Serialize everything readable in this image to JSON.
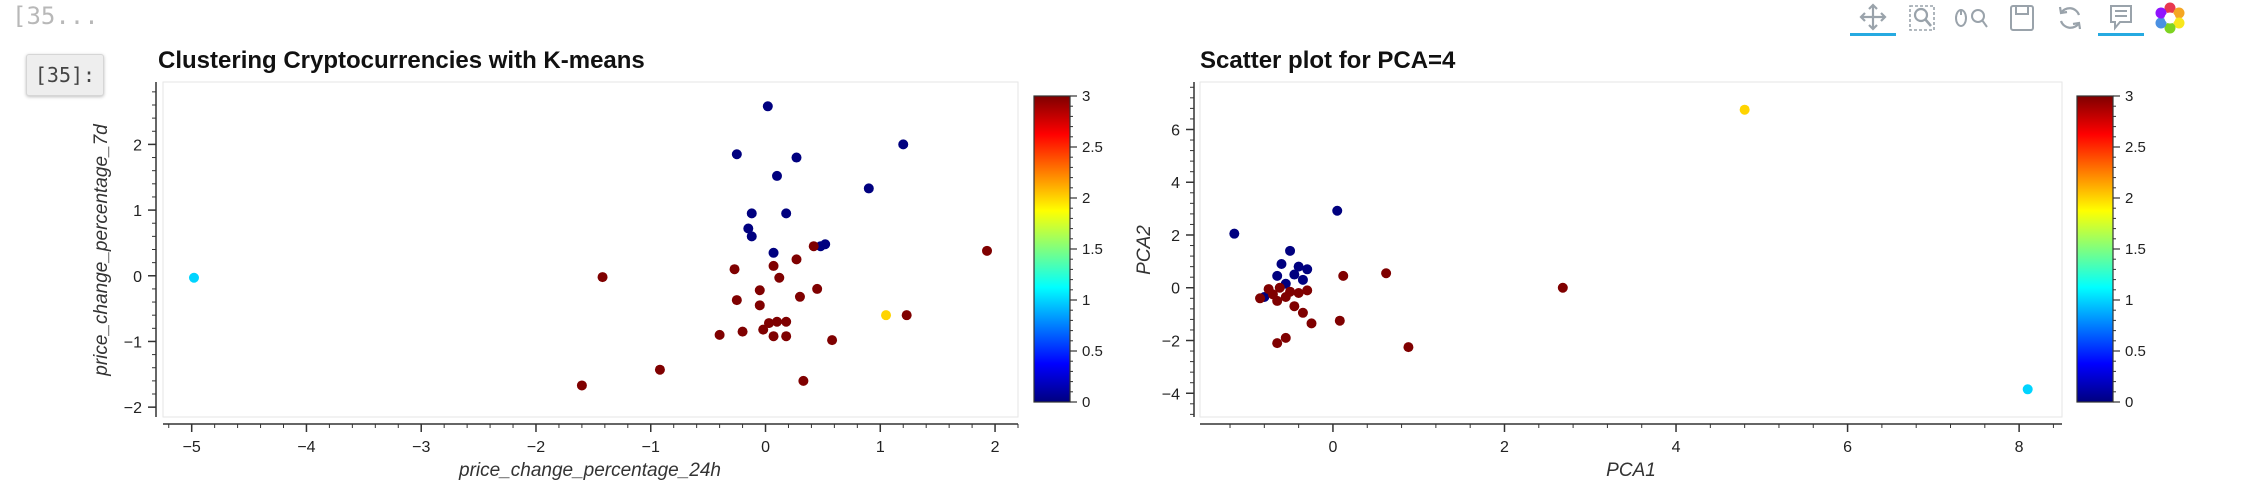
{
  "notebook": {
    "prev_cell_label": "[35...",
    "prompt_label": "[35]:"
  },
  "toolbar": {
    "items": [
      {
        "icon": "pan-icon",
        "active": true
      },
      {
        "icon": "box-zoom-icon",
        "active": false
      },
      {
        "icon": "wheel-zoom-icon",
        "active": false
      },
      {
        "icon": "save-icon",
        "active": false
      },
      {
        "icon": "reset-icon",
        "active": false
      },
      {
        "icon": "hover-icon",
        "active": true
      },
      {
        "icon": "bokeh-logo-icon",
        "active": false
      }
    ]
  },
  "colormap": [
    "#00007f",
    "#0000ff",
    "#007fff",
    "#00ffff",
    "#7fff7f",
    "#ffff00",
    "#ff7f00",
    "#ff0000",
    "#7f0000"
  ],
  "chart_data": [
    {
      "type": "scatter",
      "title": "Clustering Cryptocurrencies with K-means",
      "xlabel": "price_change_percentage_24h",
      "ylabel": "price_change_percentage_7d",
      "xlim": [
        -5.25,
        2.2
      ],
      "ylim": [
        -2.15,
        2.95
      ],
      "xticks": [
        -5,
        -4,
        -3,
        -2,
        -1,
        0,
        1,
        2
      ],
      "yticks": [
        -2,
        -1,
        0,
        1,
        2
      ],
      "color_range": [
        0,
        3
      ],
      "colorbar_ticks": [
        "0",
        "0.5",
        "1",
        "1.5",
        "2",
        "2.5",
        "3"
      ],
      "grid": false,
      "points": [
        {
          "x": 0.02,
          "y": 2.58,
          "c": 0
        },
        {
          "x": -0.25,
          "y": 1.85,
          "c": 0
        },
        {
          "x": 0.27,
          "y": 1.8,
          "c": 0
        },
        {
          "x": 0.1,
          "y": 1.52,
          "c": 0
        },
        {
          "x": 1.2,
          "y": 2.0,
          "c": 0
        },
        {
          "x": 0.9,
          "y": 1.33,
          "c": 0
        },
        {
          "x": -0.12,
          "y": 0.95,
          "c": 0
        },
        {
          "x": 0.18,
          "y": 0.95,
          "c": 0
        },
        {
          "x": -0.15,
          "y": 0.72,
          "c": 0
        },
        {
          "x": -0.12,
          "y": 0.6,
          "c": 0
        },
        {
          "x": 0.07,
          "y": 0.35,
          "c": 0
        },
        {
          "x": 0.52,
          "y": 0.48,
          "c": 0
        },
        {
          "x": 0.48,
          "y": 0.45,
          "c": 0
        },
        {
          "x": -4.98,
          "y": -0.03,
          "c": 1
        },
        {
          "x": 1.05,
          "y": -0.6,
          "c": 2
        },
        {
          "x": -1.42,
          "y": -0.02,
          "c": 3
        },
        {
          "x": 0.42,
          "y": 0.45,
          "c": 3
        },
        {
          "x": 0.27,
          "y": 0.25,
          "c": 3
        },
        {
          "x": -0.27,
          "y": 0.1,
          "c": 3
        },
        {
          "x": 0.07,
          "y": 0.15,
          "c": 3
        },
        {
          "x": 0.12,
          "y": -0.03,
          "c": 3
        },
        {
          "x": 1.93,
          "y": 0.38,
          "c": 3
        },
        {
          "x": -0.05,
          "y": -0.22,
          "c": 3
        },
        {
          "x": 0.45,
          "y": -0.2,
          "c": 3
        },
        {
          "x": -0.25,
          "y": -0.37,
          "c": 3
        },
        {
          "x": -0.05,
          "y": -0.45,
          "c": 3
        },
        {
          "x": 0.3,
          "y": -0.32,
          "c": 3
        },
        {
          "x": 1.23,
          "y": -0.6,
          "c": 3
        },
        {
          "x": 0.03,
          "y": -0.72,
          "c": 3
        },
        {
          "x": 0.1,
          "y": -0.7,
          "c": 3
        },
        {
          "x": 0.18,
          "y": -0.7,
          "c": 3
        },
        {
          "x": -0.02,
          "y": -0.82,
          "c": 3
        },
        {
          "x": -0.2,
          "y": -0.85,
          "c": 3
        },
        {
          "x": -0.4,
          "y": -0.9,
          "c": 3
        },
        {
          "x": 0.07,
          "y": -0.92,
          "c": 3
        },
        {
          "x": 0.18,
          "y": -0.92,
          "c": 3
        },
        {
          "x": 0.58,
          "y": -0.98,
          "c": 3
        },
        {
          "x": -0.92,
          "y": -1.43,
          "c": 3
        },
        {
          "x": 0.33,
          "y": -1.6,
          "c": 3
        },
        {
          "x": -1.6,
          "y": -1.67,
          "c": 3
        }
      ]
    },
    {
      "type": "scatter",
      "title": "Scatter plot for PCA=4",
      "xlabel": "PCA1",
      "ylabel": "PCA2",
      "xlim": [
        -1.55,
        8.5
      ],
      "ylim": [
        -4.9,
        7.8
      ],
      "xticks": [
        0,
        2,
        4,
        6,
        8
      ],
      "yticks": [
        -4,
        -2,
        0,
        2,
        4,
        6
      ],
      "color_range": [
        0,
        3
      ],
      "colorbar_ticks": [
        "0",
        "0.5",
        "1",
        "1.5",
        "2",
        "2.5",
        "3"
      ],
      "grid": false,
      "points": [
        {
          "x": -1.15,
          "y": 2.05,
          "c": 0
        },
        {
          "x": 0.05,
          "y": 2.92,
          "c": 0
        },
        {
          "x": -0.5,
          "y": 1.4,
          "c": 0
        },
        {
          "x": -0.6,
          "y": 0.9,
          "c": 0
        },
        {
          "x": -0.4,
          "y": 0.8,
          "c": 0
        },
        {
          "x": -0.3,
          "y": 0.7,
          "c": 0
        },
        {
          "x": -0.45,
          "y": 0.5,
          "c": 0
        },
        {
          "x": -0.65,
          "y": 0.45,
          "c": 0
        },
        {
          "x": -0.35,
          "y": 0.3,
          "c": 0
        },
        {
          "x": -0.55,
          "y": 0.15,
          "c": 0
        },
        {
          "x": -0.8,
          "y": -0.35,
          "c": 0
        },
        {
          "x": 4.8,
          "y": 6.75,
          "c": 2
        },
        {
          "x": 8.1,
          "y": -3.85,
          "c": 1
        },
        {
          "x": 0.12,
          "y": 0.45,
          "c": 3
        },
        {
          "x": 0.62,
          "y": 0.55,
          "c": 3
        },
        {
          "x": 2.68,
          "y": 0.0,
          "c": 3
        },
        {
          "x": -0.62,
          "y": 0.0,
          "c": 3
        },
        {
          "x": -0.5,
          "y": -0.15,
          "c": 3
        },
        {
          "x": -0.4,
          "y": -0.2,
          "c": 3
        },
        {
          "x": -0.3,
          "y": -0.1,
          "c": 3
        },
        {
          "x": -0.7,
          "y": -0.25,
          "c": 3
        },
        {
          "x": -0.55,
          "y": -0.35,
          "c": 3
        },
        {
          "x": -0.65,
          "y": -0.5,
          "c": 3
        },
        {
          "x": -0.45,
          "y": -0.7,
          "c": 3
        },
        {
          "x": -0.35,
          "y": -0.95,
          "c": 3
        },
        {
          "x": -0.25,
          "y": -1.35,
          "c": 3
        },
        {
          "x": 0.08,
          "y": -1.25,
          "c": 3
        },
        {
          "x": -0.65,
          "y": -2.1,
          "c": 3
        },
        {
          "x": -0.55,
          "y": -1.9,
          "c": 3
        },
        {
          "x": 0.88,
          "y": -2.25,
          "c": 3
        },
        {
          "x": -0.85,
          "y": -0.4,
          "c": 3
        },
        {
          "x": -0.75,
          "y": -0.05,
          "c": 3
        }
      ]
    }
  ]
}
